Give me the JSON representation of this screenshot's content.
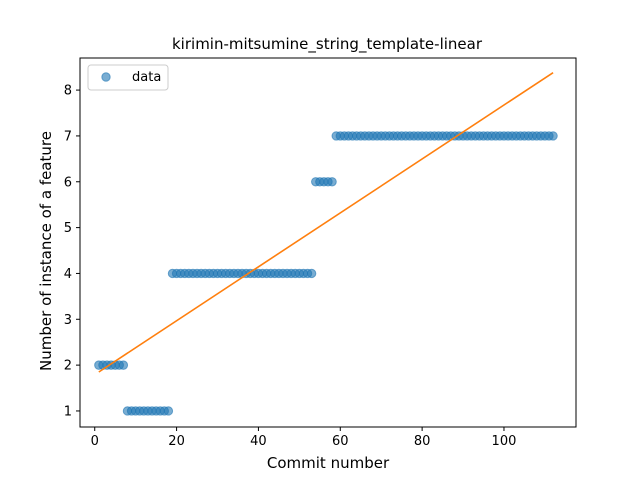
{
  "chart_data": {
    "type": "scatter",
    "title": "kirimin-mitsumine_string_template-linear",
    "xlabel": "Commit number",
    "ylabel": "Number of instance of a feature",
    "xlim": [
      -3.6,
      117.6
    ],
    "ylim": [
      0.65,
      8.7
    ],
    "xticks": [
      0,
      20,
      40,
      60,
      80,
      100
    ],
    "yticks": [
      1,
      2,
      3,
      4,
      5,
      6,
      7,
      8
    ],
    "grid": false,
    "legend": {
      "placement": "upper-left",
      "entries": [
        "data"
      ]
    },
    "colors": {
      "data": "#1f77b4",
      "fit": "#ff7f0e"
    },
    "series": [
      {
        "name": "data",
        "kind": "scatter",
        "points": [
          [
            1,
            2
          ],
          [
            2,
            2
          ],
          [
            3,
            2
          ],
          [
            4,
            2
          ],
          [
            5,
            2
          ],
          [
            6,
            2
          ],
          [
            7,
            2
          ],
          [
            8,
            1
          ],
          [
            9,
            1
          ],
          [
            10,
            1
          ],
          [
            11,
            1
          ],
          [
            12,
            1
          ],
          [
            13,
            1
          ],
          [
            14,
            1
          ],
          [
            15,
            1
          ],
          [
            16,
            1
          ],
          [
            17,
            1
          ],
          [
            18,
            1
          ],
          [
            19,
            4
          ],
          [
            20,
            4
          ],
          [
            21,
            4
          ],
          [
            22,
            4
          ],
          [
            23,
            4
          ],
          [
            24,
            4
          ],
          [
            25,
            4
          ],
          [
            26,
            4
          ],
          [
            27,
            4
          ],
          [
            28,
            4
          ],
          [
            29,
            4
          ],
          [
            30,
            4
          ],
          [
            31,
            4
          ],
          [
            32,
            4
          ],
          [
            33,
            4
          ],
          [
            34,
            4
          ],
          [
            35,
            4
          ],
          [
            36,
            4
          ],
          [
            37,
            4
          ],
          [
            38,
            4
          ],
          [
            39,
            4
          ],
          [
            40,
            4
          ],
          [
            41,
            4
          ],
          [
            42,
            4
          ],
          [
            43,
            4
          ],
          [
            44,
            4
          ],
          [
            45,
            4
          ],
          [
            46,
            4
          ],
          [
            47,
            4
          ],
          [
            48,
            4
          ],
          [
            49,
            4
          ],
          [
            50,
            4
          ],
          [
            51,
            4
          ],
          [
            52,
            4
          ],
          [
            53,
            4
          ],
          [
            54,
            6
          ],
          [
            55,
            6
          ],
          [
            56,
            6
          ],
          [
            57,
            6
          ],
          [
            58,
            6
          ],
          [
            59,
            7
          ],
          [
            60,
            7
          ],
          [
            61,
            7
          ],
          [
            62,
            7
          ],
          [
            63,
            7
          ],
          [
            64,
            7
          ],
          [
            65,
            7
          ],
          [
            66,
            7
          ],
          [
            67,
            7
          ],
          [
            68,
            7
          ],
          [
            69,
            7
          ],
          [
            70,
            7
          ],
          [
            71,
            7
          ],
          [
            72,
            7
          ],
          [
            73,
            7
          ],
          [
            74,
            7
          ],
          [
            75,
            7
          ],
          [
            76,
            7
          ],
          [
            77,
            7
          ],
          [
            78,
            7
          ],
          [
            79,
            7
          ],
          [
            80,
            7
          ],
          [
            81,
            7
          ],
          [
            82,
            7
          ],
          [
            83,
            7
          ],
          [
            84,
            7
          ],
          [
            85,
            7
          ],
          [
            86,
            7
          ],
          [
            87,
            7
          ],
          [
            88,
            7
          ],
          [
            89,
            7
          ],
          [
            90,
            7
          ],
          [
            91,
            7
          ],
          [
            92,
            7
          ],
          [
            93,
            7
          ],
          [
            94,
            7
          ],
          [
            95,
            7
          ],
          [
            96,
            7
          ],
          [
            97,
            7
          ],
          [
            98,
            7
          ],
          [
            99,
            7
          ],
          [
            100,
            7
          ],
          [
            101,
            7
          ],
          [
            102,
            7
          ],
          [
            103,
            7
          ],
          [
            104,
            7
          ],
          [
            105,
            7
          ],
          [
            106,
            7
          ],
          [
            107,
            7
          ],
          [
            108,
            7
          ],
          [
            109,
            7
          ],
          [
            110,
            7
          ],
          [
            111,
            7
          ],
          [
            112,
            7
          ]
        ]
      },
      {
        "kind": "line",
        "points": [
          [
            1,
            1.85
          ],
          [
            112,
            8.38
          ]
        ]
      }
    ]
  }
}
